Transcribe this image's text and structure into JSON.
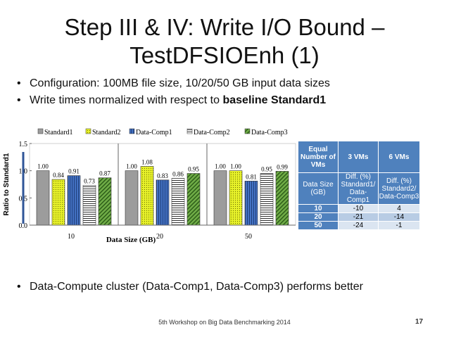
{
  "slide": {
    "title_line1": "Step III & IV: Write I/O Bound –",
    "title_line2": "TestDFSIOEnh (1)",
    "bullets": [
      "Configuration: 100MB file size, 10/20/50 GB input data sizes",
      "Write times normalized with respect to "
    ],
    "bullet2_bold": "baseline Standard1",
    "bullet3": "Data-Compute cluster (Data-Comp1, Data-Comp3) performs better",
    "footer": "5th Workshop on Big Data Benchmarking 2014",
    "page_number": "17"
  },
  "table": {
    "header": [
      "Equal Number of VMs",
      "3 VMs",
      "6 VMs"
    ],
    "subheader": [
      "Data Size (GB)",
      "Diff. (%) Standard1/ Data-Comp1",
      "Diff. (%) Standard2/ Data-Comp3"
    ],
    "rows": [
      [
        "10",
        "-10",
        "4"
      ],
      [
        "20",
        "-21",
        "-14"
      ],
      [
        "50",
        "-24",
        "-1"
      ]
    ]
  },
  "chart_data": {
    "type": "bar",
    "categories": [
      "10",
      "20",
      "50"
    ],
    "xlabel": "Data Size (GB)",
    "ylabel": "Ratio to Standard1",
    "ylim": [
      0,
      1.5
    ],
    "yticks": [
      "0.0",
      "0.5",
      "1.0",
      "1.5"
    ],
    "legend_position": "top",
    "series": [
      {
        "name": "Standard1",
        "values": [
          1.0,
          1.0,
          1.0
        ],
        "labels": [
          "1.00",
          "1.00",
          "1.00"
        ],
        "color": "#9c9c9c",
        "pattern": "solid"
      },
      {
        "name": "Standard2",
        "values": [
          0.84,
          1.08,
          1.0
        ],
        "labels": [
          "0.84",
          "1.08",
          "1.00"
        ],
        "color": "#e8f22a",
        "pattern": "dots"
      },
      {
        "name": "Data-Comp1",
        "values": [
          0.91,
          0.83,
          0.81
        ],
        "labels": [
          "0.91",
          "0.83",
          "0.81"
        ],
        "color": "#4472c4",
        "pattern": "vlines"
      },
      {
        "name": "Data-Comp2",
        "values": [
          0.73,
          0.86,
          0.95
        ],
        "labels": [
          "0.73",
          "0.86",
          "0.95"
        ],
        "color": "#ffffff",
        "pattern": "hlines"
      },
      {
        "name": "Data-Comp3",
        "values": [
          0.87,
          0.95,
          0.99
        ],
        "labels": [
          "0.87",
          "0.95",
          "0.99"
        ],
        "color": "#70ad47",
        "pattern": "diag"
      }
    ]
  }
}
